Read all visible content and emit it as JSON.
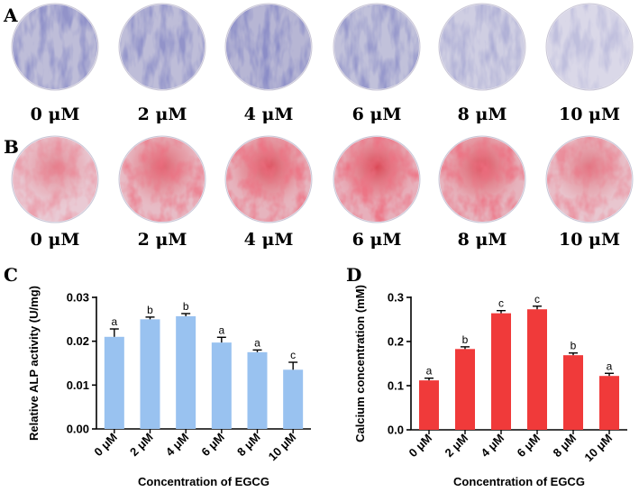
{
  "panels": {
    "A": {
      "letter": "A",
      "stain": "blue",
      "wells": [
        {
          "label": "0 μM",
          "intensity": 0.75
        },
        {
          "label": "2 μM",
          "intensity": 0.75
        },
        {
          "label": "4 μM",
          "intensity": 0.85
        },
        {
          "label": "6 μM",
          "intensity": 0.7
        },
        {
          "label": "8 μM",
          "intensity": 0.45
        },
        {
          "label": "10 μM",
          "intensity": 0.3
        }
      ]
    },
    "B": {
      "letter": "B",
      "stain": "red",
      "wells": [
        {
          "label": "0 μM",
          "intensity": 0.45
        },
        {
          "label": "2 μM",
          "intensity": 0.7
        },
        {
          "label": "4 μM",
          "intensity": 0.8
        },
        {
          "label": "6 μM",
          "intensity": 0.85
        },
        {
          "label": "8 μM",
          "intensity": 0.8
        },
        {
          "label": "10 μM",
          "intensity": 0.55
        }
      ]
    }
  },
  "colors": {
    "blue_stain": "#3b3f8f",
    "red_stain": "#d9283b",
    "bar_c": "#99c2f0",
    "bar_d": "#f03a3a"
  },
  "chart_data": [
    {
      "panel_letter": "C",
      "type": "bar",
      "categories": [
        "0 μM",
        "2 μM",
        "4 μM",
        "6 μM",
        "8 μM",
        "10 μM"
      ],
      "values": [
        0.021,
        0.025,
        0.0257,
        0.0197,
        0.0175,
        0.0135
      ],
      "errors": [
        0.0018,
        0.0005,
        0.0006,
        0.0012,
        0.0005,
        0.0017
      ],
      "significance": [
        "a",
        "b",
        "b",
        "a",
        "a",
        "c"
      ],
      "xlabel": "Concentration of EGCG",
      "ylabel": "Relative ALP activity (U/mg)",
      "ylim": [
        0,
        0.03
      ],
      "yticks": [
        "0.00",
        "0.01",
        "0.02",
        "0.03"
      ],
      "ytick_values": [
        0,
        0.01,
        0.02,
        0.03
      ]
    },
    {
      "panel_letter": "D",
      "type": "bar",
      "categories": [
        "0 μM",
        "2 μM",
        "4 μM",
        "6 μM",
        "8 μM",
        "10 μM"
      ],
      "values": [
        0.112,
        0.183,
        0.264,
        0.273,
        0.169,
        0.122
      ],
      "errors": [
        0.005,
        0.005,
        0.006,
        0.007,
        0.005,
        0.006
      ],
      "significance": [
        "a",
        "b",
        "c",
        "c",
        "b",
        "a"
      ],
      "xlabel": "Concentration of EGCG",
      "ylabel": "Calcium concentration (mM)",
      "ylim": [
        0,
        0.3
      ],
      "yticks": [
        "0.0",
        "0.1",
        "0.2",
        "0.3"
      ],
      "ytick_values": [
        0,
        0.1,
        0.2,
        0.3
      ]
    }
  ]
}
